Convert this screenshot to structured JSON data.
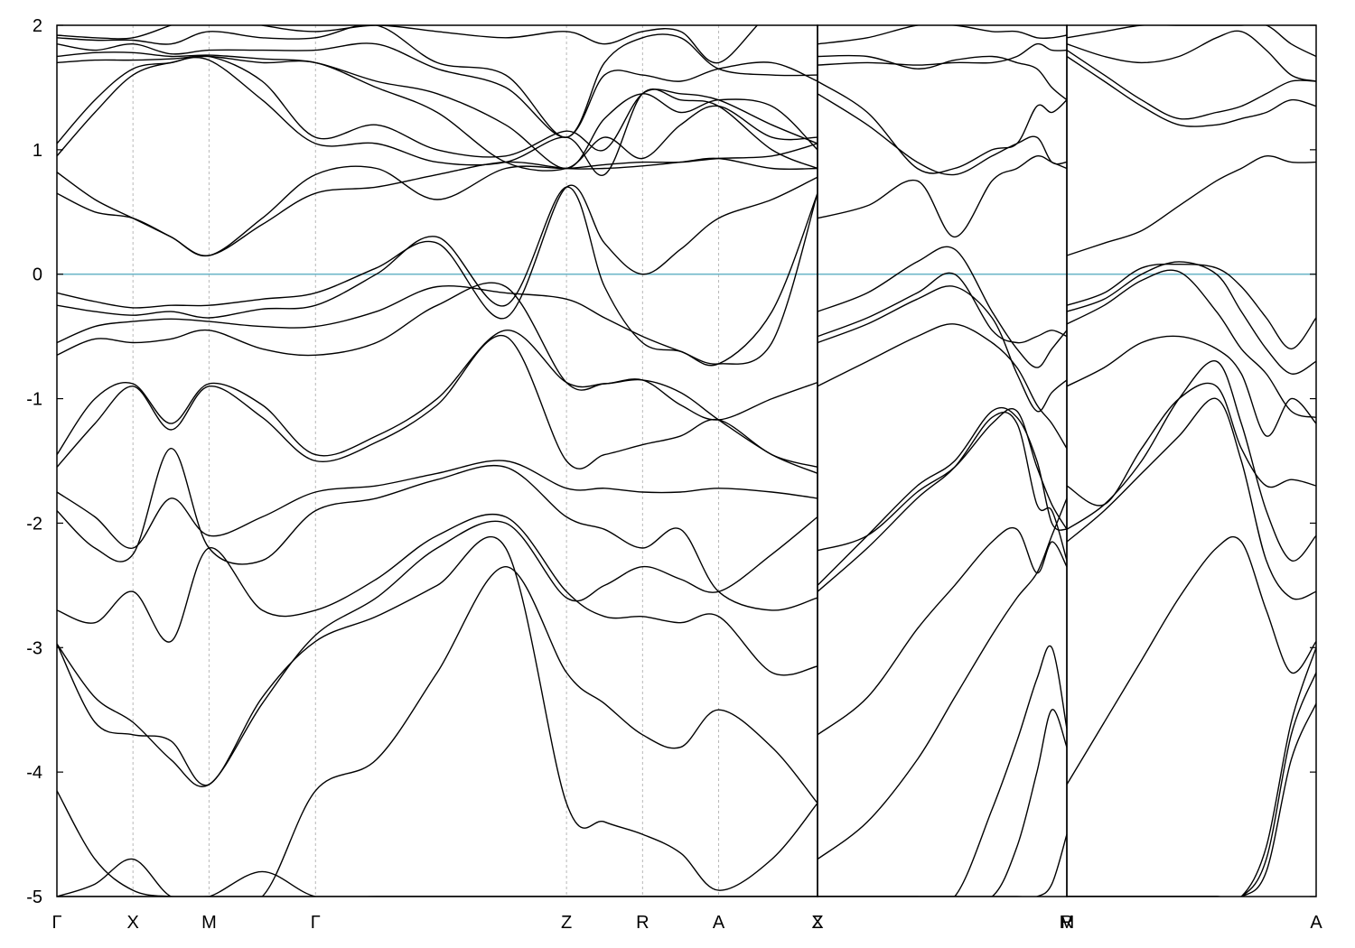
{
  "chart_data": {
    "type": "line",
    "title": "",
    "xlabel": "",
    "ylabel": "",
    "ylim": [
      -5,
      2
    ],
    "yticks": [
      -5,
      -4,
      -3,
      -2,
      -1,
      0,
      1,
      2
    ],
    "fermi_level": 0,
    "grid_x": "dashed at high-symmetry points",
    "colors": {
      "bands": "#000000",
      "fermi": "#6fb7c9",
      "grid": "#b8b8b8"
    },
    "panels": [
      {
        "name": "panel-1",
        "xlim": [
          0,
          10
        ],
        "kpoints": [
          {
            "label": "Γ",
            "x": 0
          },
          {
            "label": "X",
            "x": 1
          },
          {
            "label": "M",
            "x": 2
          },
          {
            "label": "Γ",
            "x": 3.4
          },
          {
            "label": "Z",
            "x": 6.7
          },
          {
            "label": "R",
            "x": 7.7
          },
          {
            "label": "A",
            "x": 8.7
          },
          {
            "label": "Z",
            "x": 10
          }
        ],
        "x_samples": [
          0,
          0.5,
          1,
          1.5,
          2,
          2.7,
          3.4,
          4.2,
          5,
          5.9,
          6.7,
          7.2,
          7.7,
          8.2,
          8.7,
          9.4,
          10
        ],
        "bands": [
          [
            -5.0,
            -4.9,
            -4.7,
            -5.0,
            -5.0,
            -5.0,
            -5.0,
            -5.0,
            -5.0,
            -5.0,
            -5.0,
            -5.0,
            -5.0,
            -5.0,
            -5.0,
            -5.0,
            -5.0
          ],
          [
            -4.15,
            -4.7,
            -4.95,
            -5.0,
            -5.0,
            -4.8,
            -5.0,
            -5.0,
            -5.0,
            -5.0,
            -5.0,
            -5.0,
            -5.0,
            -5.0,
            -5.0,
            -5.0,
            -5.0
          ],
          [
            -5.0,
            -5.0,
            -5.0,
            -5.0,
            -5.0,
            -5.0,
            -4.15,
            -3.9,
            -3.2,
            -2.35,
            -3.2,
            -3.45,
            -3.7,
            -3.8,
            -3.5,
            -3.8,
            -4.25
          ],
          [
            -2.97,
            -3.6,
            -3.7,
            -3.75,
            -4.1,
            -3.4,
            -2.95,
            -2.75,
            -2.5,
            -2.2,
            -4.25,
            -4.4,
            -4.5,
            -4.65,
            -4.95,
            -4.7,
            -4.25
          ],
          [
            -2.97,
            -3.4,
            -3.6,
            -3.9,
            -4.1,
            -3.45,
            -2.9,
            -2.6,
            -2.2,
            -2.0,
            -2.6,
            -2.5,
            -2.35,
            -2.45,
            -2.55,
            -2.25,
            -1.95
          ],
          [
            -2.7,
            -2.8,
            -2.55,
            -2.95,
            -2.2,
            -2.7,
            -2.7,
            -2.45,
            -2.1,
            -1.95,
            -2.55,
            -2.75,
            -2.75,
            -2.8,
            -2.75,
            -3.2,
            -3.15
          ],
          [
            -1.9,
            -2.2,
            -2.25,
            -1.4,
            -2.2,
            -2.3,
            -1.9,
            -1.8,
            -1.65,
            -1.55,
            -1.95,
            -2.05,
            -2.2,
            -2.05,
            -2.55,
            -2.7,
            -2.6
          ],
          [
            -1.75,
            -1.95,
            -2.2,
            -1.8,
            -2.1,
            -1.95,
            -1.75,
            -1.7,
            -1.6,
            -1.5,
            -1.72,
            -1.72,
            -1.75,
            -1.75,
            -1.72,
            -1.75,
            -1.8
          ],
          [
            -1.55,
            -1.2,
            -0.9,
            -1.25,
            -0.9,
            -1.15,
            -1.5,
            -1.35,
            -1.05,
            -0.5,
            -1.5,
            -1.45,
            -1.37,
            -1.3,
            -1.17,
            -1.45,
            -1.55
          ],
          [
            -1.45,
            -1.0,
            -0.88,
            -1.2,
            -0.88,
            -1.05,
            -1.45,
            -1.3,
            -1.0,
            -0.45,
            -0.87,
            -0.88,
            -0.85,
            -0.95,
            -1.17,
            -1.45,
            -1.6
          ],
          [
            -0.65,
            -0.52,
            -0.55,
            -0.52,
            -0.45,
            -0.6,
            -0.65,
            -0.55,
            -0.25,
            -0.1,
            -0.87,
            -0.88,
            -0.85,
            -1.05,
            -1.17,
            -1.0,
            -0.87
          ],
          [
            -0.55,
            -0.42,
            -0.38,
            -0.36,
            -0.38,
            -0.42,
            -0.42,
            -0.3,
            -0.1,
            -0.15,
            -0.2,
            -0.35,
            -0.5,
            -0.62,
            -0.72,
            -0.55,
            0.65
          ],
          [
            -0.25,
            -0.3,
            -0.33,
            -0.3,
            -0.35,
            -0.28,
            -0.25,
            0.0,
            0.3,
            -0.25,
            0.7,
            -0.1,
            -0.55,
            -0.62,
            -0.72,
            -0.3,
            0.65
          ],
          [
            -0.15,
            -0.22,
            -0.27,
            -0.25,
            -0.25,
            -0.2,
            -0.15,
            0.05,
            0.25,
            -0.35,
            0.7,
            0.25,
            0.0,
            0.2,
            0.45,
            0.6,
            0.78
          ],
          [
            0.65,
            0.5,
            0.45,
            0.3,
            0.15,
            0.4,
            0.65,
            0.7,
            0.8,
            0.9,
            0.85,
            0.85,
            0.87,
            0.9,
            0.93,
            0.85,
            0.85
          ],
          [
            0.82,
            0.6,
            0.45,
            0.3,
            0.15,
            0.45,
            0.8,
            0.85,
            0.6,
            0.85,
            0.85,
            0.88,
            0.9,
            0.9,
            0.93,
            0.95,
            1.05
          ],
          [
            0.95,
            1.3,
            1.6,
            1.7,
            1.72,
            1.4,
            1.05,
            1.05,
            0.9,
            0.9,
            1.1,
            0.8,
            1.45,
            1.4,
            1.35,
            1.0,
            0.85
          ],
          [
            1.05,
            1.4,
            1.65,
            1.7,
            1.75,
            1.55,
            1.1,
            1.2,
            1.0,
            0.95,
            1.15,
            1.0,
            1.45,
            1.45,
            1.4,
            1.2,
            1.05
          ],
          [
            1.7,
            1.72,
            1.72,
            1.73,
            1.75,
            1.7,
            1.7,
            1.5,
            1.3,
            0.9,
            0.85,
            1.1,
            0.93,
            1.2,
            1.35,
            1.1,
            1.1
          ],
          [
            1.75,
            1.78,
            1.78,
            1.75,
            1.76,
            1.73,
            1.7,
            1.55,
            1.45,
            1.2,
            0.85,
            1.25,
            1.45,
            1.3,
            1.4,
            1.35,
            1.0
          ],
          [
            1.85,
            1.8,
            1.85,
            1.77,
            1.8,
            1.8,
            1.8,
            1.85,
            1.65,
            1.5,
            1.1,
            1.6,
            1.6,
            1.55,
            1.65,
            1.7,
            1.55
          ],
          [
            1.9,
            1.88,
            1.88,
            1.85,
            1.95,
            1.9,
            1.9,
            2.0,
            1.7,
            1.6,
            1.1,
            1.7,
            1.9,
            1.9,
            1.65,
            1.6,
            1.6
          ],
          [
            1.92,
            1.9,
            1.9,
            2.0,
            2.1,
            2.0,
            1.95,
            2.0,
            1.95,
            1.9,
            1.95,
            1.85,
            1.95,
            1.95,
            1.7,
            2.1,
            2.1
          ]
        ]
      },
      {
        "name": "panel-2",
        "xlim": [
          0,
          10
        ],
        "kpoints": [
          {
            "label": "X",
            "x": 0
          },
          {
            "label": "R",
            "x": 10
          }
        ],
        "x_samples": [
          0,
          2,
          4,
          5.5,
          7,
          8,
          8.8,
          9.4,
          10
        ],
        "bands": [
          [
            -4.7,
            -4.4,
            -3.9,
            -3.4,
            -2.9,
            -2.6,
            -2.4,
            -2.1,
            -1.8
          ],
          [
            -5.0,
            -5.0,
            -5.0,
            -5.0,
            -4.3,
            -3.75,
            -3.25,
            -3.0,
            -3.65
          ],
          [
            -5.0,
            -5.0,
            -5.0,
            -5.0,
            -5.0,
            -4.6,
            -4.0,
            -3.5,
            -3.8
          ],
          [
            -5.0,
            -5.0,
            -5.0,
            -5.0,
            -5.0,
            -5.0,
            -5.0,
            -4.9,
            -4.5
          ],
          [
            -3.7,
            -3.4,
            -2.85,
            -2.5,
            -2.15,
            -2.05,
            -2.4,
            -2.15,
            -2.35
          ],
          [
            -2.55,
            -2.2,
            -1.8,
            -1.55,
            -1.15,
            -1.2,
            -1.85,
            -1.9,
            -2.3
          ],
          [
            -2.5,
            -2.1,
            -1.7,
            -1.5,
            -1.1,
            -1.15,
            -1.5,
            -2.0,
            -2.05
          ],
          [
            -2.22,
            -2.1,
            -1.75,
            -1.55,
            -1.2,
            -1.1,
            -1.55,
            -1.85,
            -2.05
          ],
          [
            -0.9,
            -0.7,
            -0.5,
            -0.4,
            -0.55,
            -0.75,
            -1.05,
            -1.2,
            -1.4
          ],
          [
            -0.55,
            -0.4,
            -0.2,
            -0.1,
            -0.35,
            -0.8,
            -1.1,
            -0.95,
            -0.85
          ],
          [
            -0.5,
            -0.35,
            -0.15,
            0.0,
            -0.45,
            -0.55,
            -0.5,
            -0.45,
            -0.5
          ],
          [
            -0.3,
            -0.15,
            0.1,
            0.2,
            -0.3,
            -0.6,
            -0.75,
            -0.6,
            -0.45
          ],
          [
            0.45,
            0.55,
            0.75,
            0.3,
            0.75,
            0.85,
            0.95,
            0.9,
            0.85
          ],
          [
            1.45,
            1.2,
            0.9,
            0.8,
            0.95,
            1.05,
            1.1,
            0.9,
            0.9
          ],
          [
            1.55,
            1.3,
            0.85,
            0.85,
            1.0,
            1.05,
            1.35,
            1.3,
            1.4
          ],
          [
            1.68,
            1.7,
            1.68,
            1.7,
            1.7,
            1.75,
            1.85,
            1.8,
            1.8
          ],
          [
            1.75,
            1.75,
            1.65,
            1.72,
            1.75,
            1.7,
            1.65,
            1.5,
            1.4
          ],
          [
            1.85,
            1.9,
            2.0,
            2.0,
            1.95,
            1.95,
            1.9,
            1.9,
            1.92
          ]
        ]
      },
      {
        "name": "panel-3",
        "xlim": [
          0,
          10
        ],
        "kpoints": [
          {
            "label": "M",
            "x": 0
          },
          {
            "label": "A",
            "x": 10
          }
        ],
        "x_samples": [
          0,
          1.5,
          3,
          4.5,
          6,
          7,
          8,
          9,
          10
        ],
        "bands": [
          [
            -5.0,
            -5.0,
            -5.0,
            -5.0,
            -5.0,
            -5.0,
            -4.6,
            -3.6,
            -3.0
          ],
          [
            -5.0,
            -5.0,
            -5.0,
            -5.0,
            -5.0,
            -5.0,
            -4.7,
            -3.7,
            -3.2
          ],
          [
            -5.0,
            -5.0,
            -5.0,
            -5.0,
            -5.0,
            -5.0,
            -4.8,
            -3.9,
            -3.45
          ],
          [
            -4.1,
            -3.6,
            -3.1,
            -2.6,
            -2.2,
            -2.15,
            -2.7,
            -3.2,
            -2.95
          ],
          [
            -2.15,
            -1.9,
            -1.6,
            -1.3,
            -1.0,
            -1.5,
            -2.3,
            -2.6,
            -2.55
          ],
          [
            -2.05,
            -1.85,
            -1.5,
            -1.0,
            -0.7,
            -1.2,
            -1.9,
            -2.3,
            -2.1
          ],
          [
            -1.7,
            -1.85,
            -1.4,
            -1.0,
            -0.9,
            -1.4,
            -1.7,
            -1.65,
            -1.7
          ],
          [
            -0.9,
            -0.75,
            -0.55,
            -0.5,
            -0.6,
            -0.8,
            -1.3,
            -1.0,
            -1.2
          ],
          [
            -0.4,
            -0.25,
            -0.05,
            0.02,
            -0.3,
            -0.6,
            -0.8,
            -1.1,
            -1.15
          ],
          [
            -0.3,
            -0.2,
            0.0,
            0.1,
            0.0,
            -0.3,
            -0.6,
            -0.8,
            -0.7
          ],
          [
            -0.25,
            -0.15,
            0.05,
            0.08,
            0.05,
            -0.1,
            -0.35,
            -0.6,
            -0.35
          ],
          [
            0.15,
            0.25,
            0.35,
            0.55,
            0.75,
            0.85,
            0.95,
            0.9,
            0.9
          ],
          [
            1.75,
            1.55,
            1.35,
            1.2,
            1.2,
            1.25,
            1.3,
            1.4,
            1.35
          ],
          [
            1.8,
            1.6,
            1.4,
            1.25,
            1.3,
            1.35,
            1.45,
            1.55,
            1.55
          ],
          [
            1.85,
            1.75,
            1.7,
            1.75,
            1.9,
            1.95,
            1.8,
            1.6,
            1.55
          ],
          [
            1.9,
            1.95,
            2.0,
            2.0,
            2.0,
            2.0,
            2.0,
            1.85,
            1.75
          ]
        ]
      }
    ]
  }
}
